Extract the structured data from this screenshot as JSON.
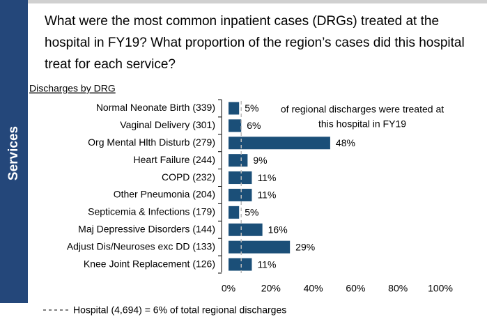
{
  "section": "Services",
  "chart_data": {
    "type": "bar",
    "orientation": "horizontal",
    "title": [
      "What were the most common inpatient cases (DRGs) treated at the",
      "hospital in FY19? What proportion of the region’s cases did this hospital",
      "treat for each service?"
    ],
    "subtitle": "Discharges by DRG",
    "categories": [
      "Normal Neonate Birth (339)",
      "Vaginal Delivery (301)",
      "Org Mental Hlth Disturb (279)",
      "Heart Failure (244)",
      "COPD (232)",
      "Other Pneumonia (204)",
      "Septicemia & Infections (179)",
      "Maj Depressive Disorders (144)",
      "Adjust Dis/Neuroses exc DD (133)",
      "Knee Joint Replacement (126)"
    ],
    "values": [
      5,
      6,
      48,
      9,
      11,
      11,
      5,
      16,
      29,
      11
    ],
    "value_labels": [
      "5%",
      "6%",
      "48%",
      "9%",
      "11%",
      "11%",
      "5%",
      "16%",
      "29%",
      "11%"
    ],
    "color": "#1b4f78",
    "xlim": [
      0,
      100
    ],
    "xticks": [
      {
        "value": 0,
        "label": "0%"
      },
      {
        "value": 20,
        "label": "20%"
      },
      {
        "value": 40,
        "label": "40%"
      },
      {
        "value": 60,
        "label": "60%"
      },
      {
        "value": 80,
        "label": "80%"
      },
      {
        "value": 100,
        "label": "100%"
      }
    ],
    "annotations": [
      "of regional discharges were treated at",
      "this hospital in FY19"
    ],
    "reference_line": {
      "value": 6,
      "label": "Hospital  (4,694) = 6%  of total regional discharges"
    }
  }
}
